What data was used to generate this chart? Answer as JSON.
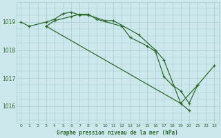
{
  "background_color": "#cce8ec",
  "grid_color": "#aacccc",
  "line_color": "#2d6a2d",
  "title": "Graphe pression niveau de la mer (hPa)",
  "yticks": [
    1016,
    1017,
    1018,
    1019
  ],
  "ylim": [
    1015.4,
    1019.7
  ],
  "xlim": [
    -0.5,
    23.5
  ],
  "line1_x": [
    0,
    1,
    3,
    4,
    5,
    6,
    7,
    8,
    10,
    11,
    14,
    16,
    17,
    19,
    20
  ],
  "line1_y": [
    1019.0,
    1018.85,
    1019.0,
    1019.1,
    1019.3,
    1019.35,
    1019.25,
    1019.25,
    1019.05,
    1019.05,
    1018.55,
    1018.0,
    1017.65,
    1016.1,
    1015.85
  ],
  "line2_x": [
    3,
    4,
    6,
    7,
    8,
    9,
    12,
    13,
    15,
    16,
    17,
    18,
    19,
    20,
    21
  ],
  "line2_y": [
    1018.85,
    1019.05,
    1019.2,
    1019.28,
    1019.28,
    1019.1,
    1018.85,
    1018.45,
    1018.15,
    1017.95,
    1017.05,
    1016.75,
    1016.55,
    1016.1,
    1016.75
  ],
  "line3_x": [
    3,
    19,
    21,
    23
  ],
  "line3_y": [
    1018.85,
    1016.1,
    1016.75,
    1017.45
  ]
}
